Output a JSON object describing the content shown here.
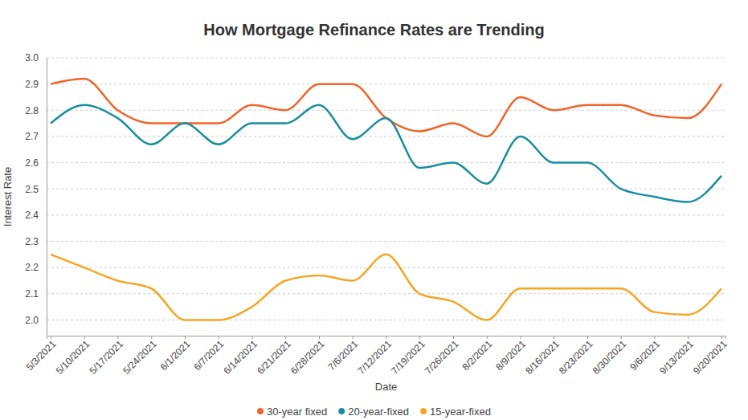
{
  "chart_data": {
    "type": "line",
    "title": "How Mortgage Refinance Rates are Trending",
    "x_label": "Date",
    "y_label": "Interest Rate",
    "x": [
      "5/3/2021",
      "5/10/2021",
      "5/17/2021",
      "5/24/2021",
      "6/1/2021",
      "6/7/2021",
      "6/14/2021",
      "6/21/2021",
      "6/28/2021",
      "7/6/2021",
      "7/12/2021",
      "7/19/2021",
      "7/26/2021",
      "8/2/2021",
      "8/9/2021",
      "8/16/2021",
      "8/23/2021",
      "8/30/2021",
      "9/6/2021",
      "9/13/2021",
      "9/20/2021"
    ],
    "series": [
      {
        "name": "30-year fixed",
        "color": "#f0642a",
        "values": [
          2.9,
          2.92,
          2.8,
          2.75,
          2.75,
          2.75,
          2.82,
          2.8,
          2.9,
          2.9,
          2.77,
          2.72,
          2.75,
          2.7,
          2.85,
          2.8,
          2.82,
          2.82,
          2.78,
          2.77,
          2.9
        ]
      },
      {
        "name": "20-year-fixed",
        "color": "#1a8e9e",
        "values": [
          2.75,
          2.82,
          2.77,
          2.67,
          2.75,
          2.67,
          2.75,
          2.75,
          2.82,
          2.69,
          2.77,
          2.58,
          2.6,
          2.52,
          2.7,
          2.6,
          2.6,
          2.5,
          2.47,
          2.45,
          2.55
        ]
      },
      {
        "name": "15-year-fixed",
        "color": "#f5a623",
        "values": [
          2.25,
          2.2,
          2.15,
          2.12,
          2.0,
          2.0,
          2.05,
          2.15,
          2.17,
          2.15,
          2.25,
          2.1,
          2.07,
          2.0,
          2.12,
          2.12,
          2.12,
          2.12,
          2.03,
          2.02,
          2.12
        ]
      }
    ],
    "ylim": [
      1.94,
      3.0
    ],
    "yticks": [
      {
        "value": 2,
        "label": "2.0"
      },
      2.1,
      2.2,
      2.3,
      2.4,
      2.5,
      2.6,
      2.7,
      2.8,
      2.9,
      {
        "value": 3,
        "label": "3.0"
      }
    ],
    "grid": true,
    "legend": "bottom",
    "line_style": "solid"
  }
}
